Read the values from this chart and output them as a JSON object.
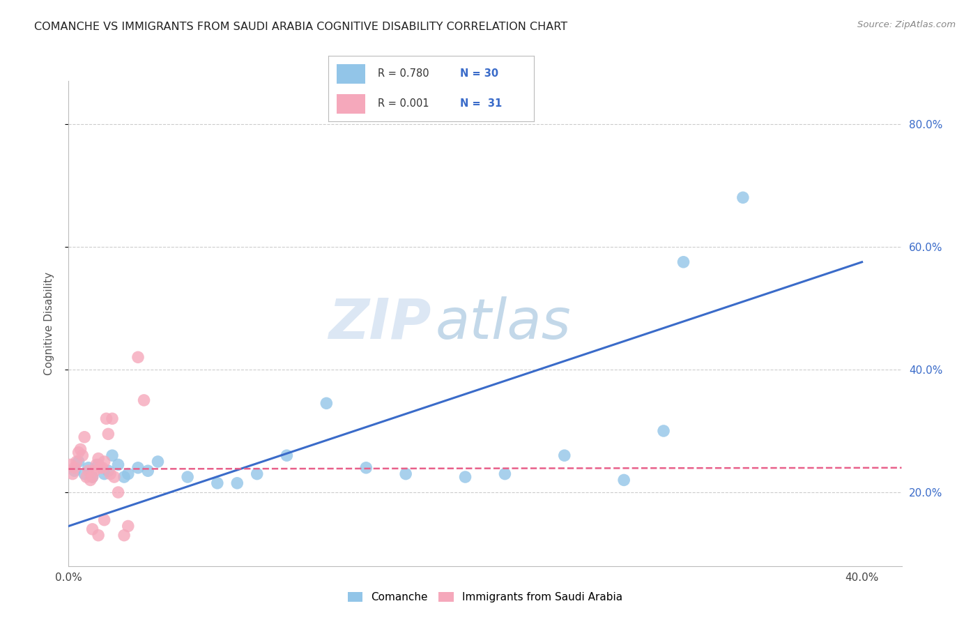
{
  "title": "COMANCHE VS IMMIGRANTS FROM SAUDI ARABIA COGNITIVE DISABILITY CORRELATION CHART",
  "source": "Source: ZipAtlas.com",
  "ylabel": "Cognitive Disability",
  "xlim": [
    0.0,
    0.42
  ],
  "ylim": [
    0.08,
    0.87
  ],
  "yticks": [
    0.2,
    0.4,
    0.6,
    0.8
  ],
  "ytick_labels": [
    "20.0%",
    "40.0%",
    "60.0%",
    "80.0%"
  ],
  "xticks": [
    0.0,
    0.1,
    0.2,
    0.3,
    0.4
  ],
  "xtick_labels": [
    "0.0%",
    "",
    "",
    "",
    "40.0%"
  ],
  "legend_R1": "0.780",
  "legend_N1": "30",
  "legend_R2": "0.001",
  "legend_N2": "31",
  "legend_label1": "Comanche",
  "legend_label2": "Immigrants from Saudi Arabia",
  "color_blue": "#92C5E8",
  "color_pink": "#F5A8BB",
  "line_blue": "#3A6BC9",
  "line_pink": "#E8608A",
  "grid_color": "#CCCCCC",
  "watermark_zip": "ZIP",
  "watermark_atlas": "atlas",
  "blue_scatter_x": [
    0.003,
    0.005,
    0.008,
    0.01,
    0.012,
    0.015,
    0.018,
    0.02,
    0.022,
    0.025,
    0.028,
    0.03,
    0.035,
    0.04,
    0.045,
    0.06,
    0.075,
    0.085,
    0.095,
    0.11,
    0.13,
    0.15,
    0.17,
    0.2,
    0.22,
    0.25,
    0.28,
    0.3,
    0.31,
    0.34
  ],
  "blue_scatter_y": [
    0.235,
    0.25,
    0.23,
    0.24,
    0.225,
    0.245,
    0.23,
    0.235,
    0.26,
    0.245,
    0.225,
    0.23,
    0.24,
    0.235,
    0.25,
    0.225,
    0.215,
    0.215,
    0.23,
    0.26,
    0.345,
    0.24,
    0.23,
    0.225,
    0.23,
    0.26,
    0.22,
    0.3,
    0.575,
    0.68
  ],
  "pink_scatter_x": [
    0.001,
    0.002,
    0.003,
    0.004,
    0.005,
    0.006,
    0.007,
    0.008,
    0.009,
    0.01,
    0.011,
    0.012,
    0.013,
    0.014,
    0.015,
    0.016,
    0.017,
    0.018,
    0.019,
    0.02,
    0.021,
    0.022,
    0.023,
    0.025,
    0.028,
    0.03,
    0.035,
    0.038,
    0.015,
    0.012,
    0.018
  ],
  "pink_scatter_y": [
    0.245,
    0.23,
    0.24,
    0.25,
    0.265,
    0.27,
    0.26,
    0.29,
    0.225,
    0.235,
    0.22,
    0.225,
    0.235,
    0.245,
    0.255,
    0.24,
    0.24,
    0.25,
    0.32,
    0.295,
    0.23,
    0.32,
    0.225,
    0.2,
    0.13,
    0.145,
    0.42,
    0.35,
    0.13,
    0.14,
    0.155
  ],
  "blue_line_x": [
    0.0,
    0.4
  ],
  "blue_line_y": [
    0.145,
    0.575
  ],
  "pink_line_x": [
    0.0,
    0.42
  ],
  "pink_line_y": [
    0.238,
    0.24
  ]
}
